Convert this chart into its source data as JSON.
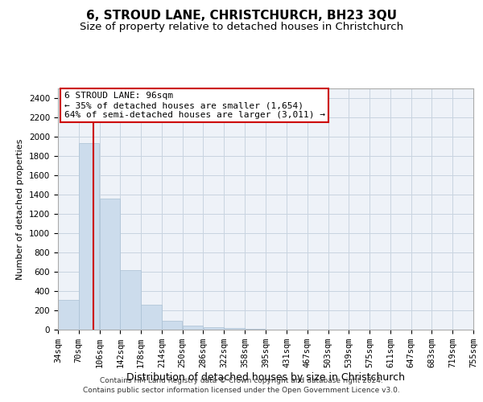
{
  "title": "6, STROUD LANE, CHRISTCHURCH, BH23 3QU",
  "subtitle": "Size of property relative to detached houses in Christchurch",
  "xlabel": "Distribution of detached houses by size in Christchurch",
  "ylabel": "Number of detached properties",
  "footnote1": "Contains HM Land Registry data © Crown copyright and database right 2024.",
  "footnote2": "Contains public sector information licensed under the Open Government Licence v3.0.",
  "bar_color": "#ccdcec",
  "bar_edge_color": "#aac0d4",
  "grid_color": "#c8d4e0",
  "annotation_border_color": "#cc0000",
  "vline_color": "#cc0000",
  "property_size_sqm": 96,
  "property_label": "6 STROUD LANE: 96sqm",
  "annotation_line1": "← 35% of detached houses are smaller (1,654)",
  "annotation_line2": "64% of semi-detached houses are larger (3,011) →",
  "bin_edges": [
    34,
    70,
    106,
    142,
    178,
    214,
    250,
    286,
    322,
    358,
    395,
    431,
    467,
    503,
    539,
    575,
    611,
    647,
    683,
    719,
    755
  ],
  "bar_heights": [
    310,
    1930,
    1360,
    620,
    260,
    90,
    45,
    25,
    20,
    10,
    0,
    0,
    0,
    0,
    0,
    0,
    0,
    0,
    0,
    0
  ],
  "ylim": [
    0,
    2500
  ],
  "yticks": [
    0,
    200,
    400,
    600,
    800,
    1000,
    1200,
    1400,
    1600,
    1800,
    2000,
    2200,
    2400
  ],
  "background_color": "#ffffff",
  "plot_bg_color": "#eef2f8",
  "title_fontsize": 11,
  "subtitle_fontsize": 9.5,
  "ylabel_fontsize": 8,
  "xlabel_fontsize": 9,
  "tick_fontsize": 7.5,
  "annotation_fontsize": 8,
  "footnote_fontsize": 6.5
}
